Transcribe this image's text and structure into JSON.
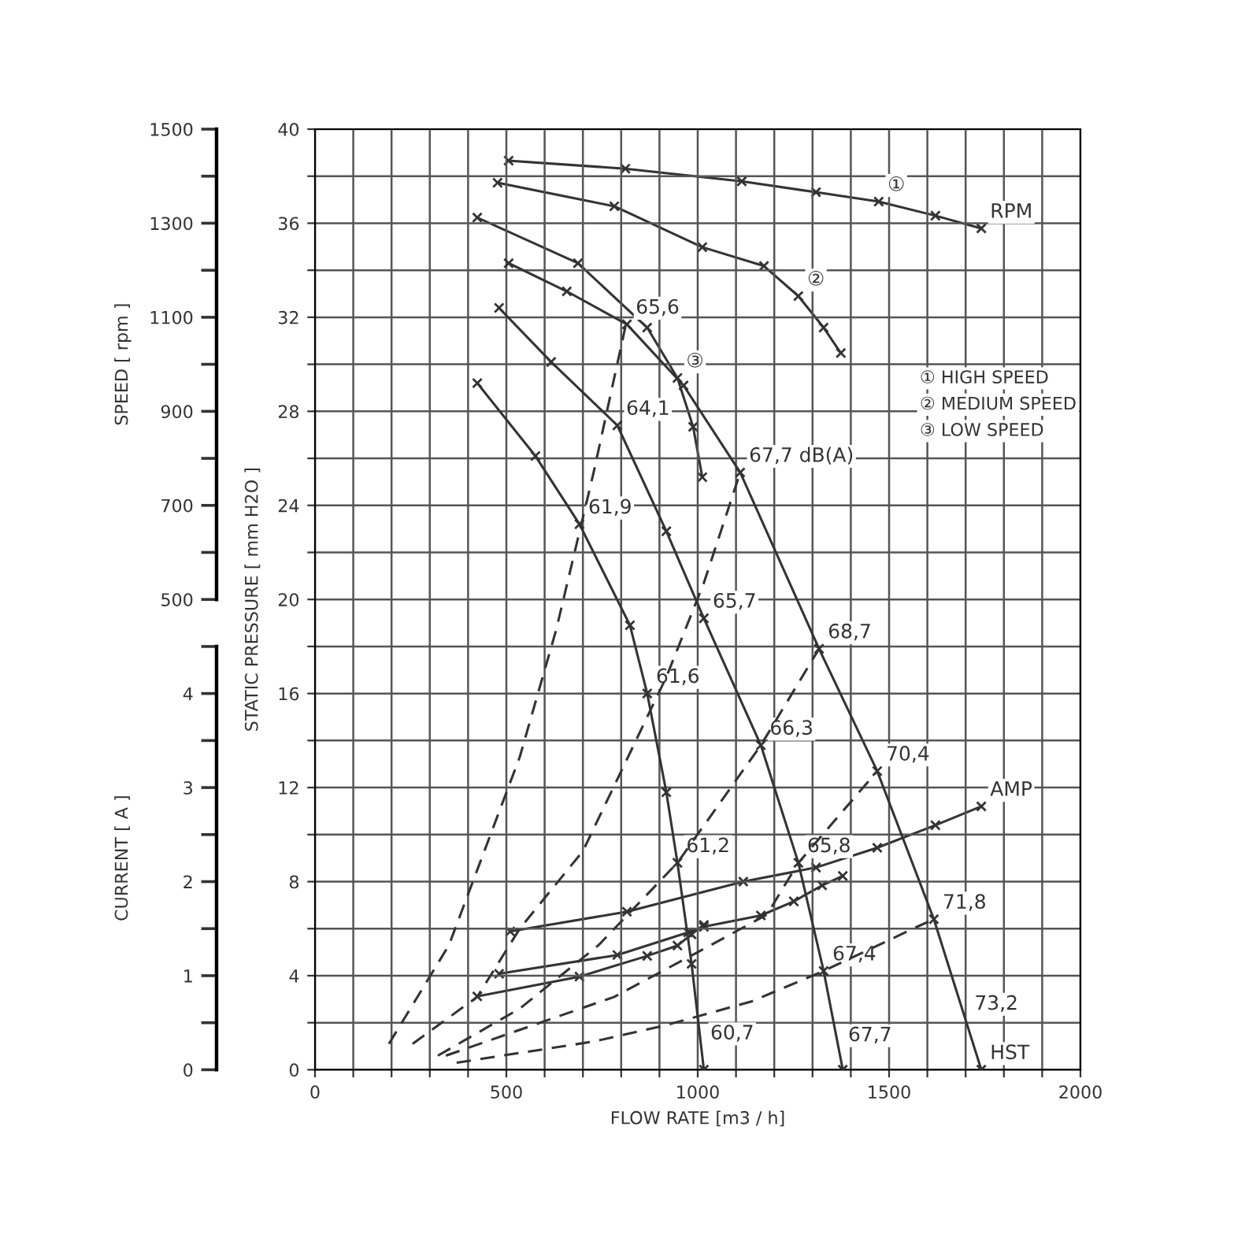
{
  "chart_data": {
    "type": "line",
    "xlabel": "FLOW RATE [m3 / h]",
    "ylabel": "STATIC PRESSURE [ mm H2O ]",
    "y2label": "SPEED [ rpm ]",
    "y3label": "CURRENT [ A ]",
    "xlim": [
      0,
      2000
    ],
    "xticks": [
      0,
      {
        "value": 100,
        "label": null
      },
      {
        "value": 200,
        "label": null
      },
      {
        "value": 300,
        "label": null
      },
      {
        "value": 400,
        "label": null
      },
      500,
      {
        "value": 600,
        "label": null
      },
      {
        "value": 700,
        "label": null
      },
      {
        "value": 800,
        "label": null
      },
      {
        "value": 900,
        "label": null
      },
      1000,
      {
        "value": 1100,
        "label": null
      },
      {
        "value": 1200,
        "label": null
      },
      {
        "value": 1300,
        "label": null
      },
      {
        "value": 1400,
        "label": null
      },
      1500,
      {
        "value": 1600,
        "label": null
      },
      {
        "value": 1700,
        "label": null
      },
      {
        "value": 1800,
        "label": null
      },
      {
        "value": 1900,
        "label": null
      },
      2000
    ],
    "ylim": [
      0,
      40
    ],
    "yticks": [
      0,
      {
        "value": 2,
        "label": null
      },
      4,
      {
        "value": 6,
        "label": null
      },
      8,
      {
        "value": 10,
        "label": null
      },
      12,
      {
        "value": 14,
        "label": null
      },
      16,
      {
        "value": 18,
        "label": null
      },
      20,
      {
        "value": 22,
        "label": null
      },
      24,
      {
        "value": 26,
        "label": null
      },
      28,
      {
        "value": 30,
        "label": null
      },
      32,
      {
        "value": 34,
        "label": null
      },
      36,
      {
        "value": 38,
        "label": null
      },
      40
    ],
    "y2lim": [
      -500,
      1500
    ],
    "y2ticks": [
      500,
      {
        "value": 600,
        "label": null
      },
      700,
      {
        "value": 800,
        "label": null
      },
      900,
      {
        "value": 1000,
        "label": null
      },
      1100,
      {
        "value": 1200,
        "label": null
      },
      1300,
      {
        "value": 1400,
        "label": null
      },
      1500
    ],
    "y3lim": [
      0,
      10
    ],
    "y3ticks": [
      0,
      {
        "value": 0.5,
        "label": null
      },
      1,
      {
        "value": 1.5,
        "label": null
      },
      2,
      {
        "value": 2.5,
        "label": null
      },
      3,
      {
        "value": 3.5,
        "label": null
      },
      4,
      {
        "value": 4.5,
        "label": null
      }
    ],
    "grid": true,
    "marker": "cross",
    "line_style": "solid",
    "series": [
      {
        "color": "#333333",
        "x": [
          506,
          658,
          815,
          963,
          1111,
          1317,
          1469,
          1617,
          1741
        ],
        "values": [
          34.3,
          33.1,
          31.7,
          29.1,
          25.4,
          17.9,
          12.7,
          6.4,
          0
        ]
      },
      {
        "color": "#333333",
        "x": [
          481,
          617,
          790,
          918,
          1016,
          1165,
          1263,
          1329,
          1379
        ],
        "values": [
          32.4,
          30.1,
          27.4,
          22.9,
          19.2,
          13.8,
          8.8,
          4.2,
          0
        ]
      },
      {
        "color": "#333333",
        "x": [
          424,
          576,
          691,
          823,
          868,
          918,
          947,
          984,
          1016
        ],
        "values": [
          29.2,
          26.1,
          23.2,
          18.9,
          16.0,
          11.8,
          8.8,
          4.5,
          0
        ]
      },
      {
        "color": "#333333",
        "axis": "y2",
        "x": [
          506,
          811,
          1115,
          1309,
          1473,
          1621,
          1741
        ],
        "values": [
          1433,
          1416,
          1389,
          1366,
          1346,
          1316,
          1289
        ]
      },
      {
        "color": "#333333",
        "axis": "y2",
        "x": [
          477,
          782,
          1012,
          1173,
          1263,
          1329,
          1374
        ],
        "values": [
          1386,
          1336,
          1249,
          1209,
          1145,
          1078,
          1024
        ]
      },
      {
        "color": "#333333",
        "axis": "y2",
        "x": [
          424,
          687,
          868,
          947,
          988,
          1012
        ],
        "values": [
          1312,
          1215,
          1078,
          971,
          867,
          760
        ]
      },
      {
        "color": "#333333",
        "axis": "y3",
        "x": [
          510,
          815,
          1119,
          1309,
          1469,
          1621,
          1741
        ],
        "values": [
          1.47,
          1.68,
          2.0,
          2.15,
          2.36,
          2.6,
          2.8
        ]
      },
      {
        "color": "#333333",
        "axis": "y3",
        "x": [
          481,
          790,
          975,
          1016,
          1165,
          1251,
          1325,
          1379
        ],
        "values": [
          1.02,
          1.22,
          1.46,
          1.52,
          1.64,
          1.79,
          1.96,
          2.06
        ]
      },
      {
        "color": "#333333",
        "axis": "y3",
        "x": [
          424,
          691,
          868,
          947,
          984,
          1016
        ],
        "values": [
          0.78,
          0.99,
          1.21,
          1.32,
          1.44,
          1.54
        ]
      },
      {
        "color": "#333333",
        "line_style": "dashed",
        "marker": "none",
        "x": [
          193,
          350,
          535,
          630,
          728,
          811
        ],
        "values": [
          1.1,
          5.3,
          13.3,
          18.7,
          25.4,
          31.6
        ]
      },
      {
        "color": "#333333",
        "line_style": "dashed",
        "marker": "none",
        "x": [
          255,
          424,
          535,
          700,
          918,
          1016,
          1111
        ],
        "values": [
          1.1,
          3.1,
          6.0,
          9.3,
          16.7,
          20.7,
          25.4
        ]
      },
      {
        "color": "#333333",
        "line_style": "dashed",
        "marker": "none",
        "x": [
          321,
          535,
          741,
          947,
          1165,
          1317
        ],
        "values": [
          0.6,
          2.6,
          5.3,
          8.8,
          13.8,
          17.9
        ]
      },
      {
        "color": "#333333",
        "line_style": "dashed",
        "marker": "none",
        "x": [
          342,
          782,
          1000,
          1181,
          1263,
          1469
        ],
        "values": [
          0.6,
          3.1,
          5.0,
          6.6,
          8.8,
          12.7
        ]
      },
      {
        "color": "#333333",
        "line_style": "dashed",
        "marker": "none",
        "x": [
          370,
          728,
          918,
          1140,
          1329,
          1576,
          1617
        ],
        "values": [
          0.3,
          1.2,
          1.9,
          2.9,
          4.2,
          6.1,
          6.4
        ]
      }
    ],
    "annotations": [
      {
        "text": "65,6",
        "x": 815,
        "y": 31.7
      },
      {
        "text": "64,1",
        "x": 790,
        "y": 27.4
      },
      {
        "text": "61,9",
        "x": 691,
        "y": 23.2
      },
      {
        "text": "67,7 dB(A)",
        "x": 1111,
        "y": 25.4
      },
      {
        "text": "65,7",
        "x": 1016,
        "y": 19.2
      },
      {
        "text": "61,6",
        "x": 868,
        "y": 16.0
      },
      {
        "text": "68,7",
        "x": 1317,
        "y": 17.9
      },
      {
        "text": "66,3",
        "x": 1165,
        "y": 13.8
      },
      {
        "text": "70,4",
        "x": 1469,
        "y": 12.7
      },
      {
        "text": "61,2",
        "x": 947,
        "y": 8.8
      },
      {
        "text": "65,8",
        "x": 1263,
        "y": 8.8
      },
      {
        "text": "71,8",
        "x": 1617,
        "y": 6.4
      },
      {
        "text": "67,4",
        "x": 1329,
        "y": 4.2
      },
      {
        "text": "60,7",
        "x": 1010,
        "y": 0.84
      },
      {
        "text": "67,7",
        "x": 1370,
        "y": 0.76
      },
      {
        "text": "73,2",
        "x": 1700,
        "y": 2.1
      },
      {
        "text": "HST",
        "x": 1741,
        "y": 0
      },
      {
        "text": "RPM",
        "x": 1741,
        "y": 35.78
      },
      {
        "text": "AMP",
        "x": 1741,
        "y": 11.2
      },
      {
        "text": "①",
        "x": 1473,
        "y": 36.92
      },
      {
        "text": "②",
        "x": 1263,
        "y": 32.9
      },
      {
        "text": "③",
        "x": 947,
        "y": 29.42
      },
      "① HIGH SPEED",
      "② MEDIUM SPEED",
      "③ LOW SPEED"
    ]
  }
}
